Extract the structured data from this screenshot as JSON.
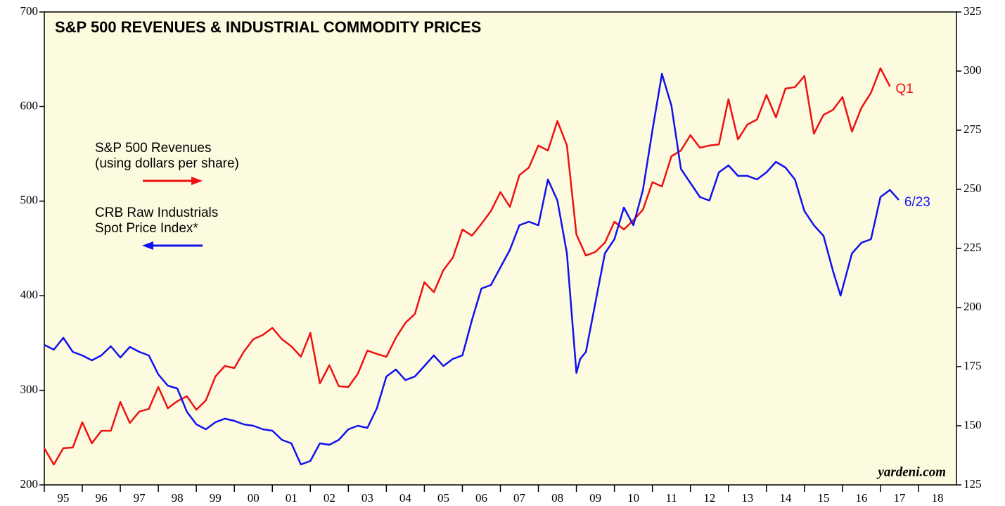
{
  "chart_data": {
    "type": "line",
    "title": "S&P 500 REVENUES & INDUSTRIAL COMMODITY PRICES",
    "source": "yardeni.com",
    "xlim": [
      1995,
      2019
    ],
    "xticks": [
      {
        "value": 1995,
        "label": "95"
      },
      {
        "value": 1996,
        "label": "96"
      },
      {
        "value": 1997,
        "label": "97"
      },
      {
        "value": 1998,
        "label": "98"
      },
      {
        "value": 1999,
        "label": "99"
      },
      {
        "value": 2000,
        "label": "00"
      },
      {
        "value": 2001,
        "label": "01"
      },
      {
        "value": 2002,
        "label": "02"
      },
      {
        "value": 2003,
        "label": "03"
      },
      {
        "value": 2004,
        "label": "04"
      },
      {
        "value": 2005,
        "label": "05"
      },
      {
        "value": 2006,
        "label": "06"
      },
      {
        "value": 2007,
        "label": "07"
      },
      {
        "value": 2008,
        "label": "08"
      },
      {
        "value": 2009,
        "label": "09"
      },
      {
        "value": 2010,
        "label": "10"
      },
      {
        "value": 2011,
        "label": "11"
      },
      {
        "value": 2012,
        "label": "12"
      },
      {
        "value": 2013,
        "label": "13"
      },
      {
        "value": 2014,
        "label": "14"
      },
      {
        "value": 2015,
        "label": "15"
      },
      {
        "value": 2016,
        "label": "16"
      },
      {
        "value": 2017,
        "label": "17"
      },
      {
        "value": 2018,
        "label": "18"
      }
    ],
    "ylim": [
      200,
      700
    ],
    "yticks": [
      200,
      300,
      400,
      500,
      600,
      700
    ],
    "y2lim": [
      125,
      325
    ],
    "y2ticks": [
      125,
      150,
      175,
      200,
      225,
      250,
      275,
      300,
      325
    ],
    "series": [
      {
        "name": "S&P 500 Revenues\n(using dollars per share)",
        "color": "#ee1111",
        "axis": "y2",
        "end_label": "Q1",
        "x": [
          1995,
          1995.25,
          1995.5,
          1995.75,
          1996,
          1996.25,
          1996.5,
          1996.75,
          1997,
          1997.25,
          1997.5,
          1997.75,
          1998,
          1998.25,
          1998.5,
          1998.75,
          1999,
          1999.25,
          1999.5,
          1999.75,
          2000,
          2000.25,
          2000.5,
          2000.75,
          2001,
          2001.25,
          2001.5,
          2001.75,
          2002,
          2002.25,
          2002.5,
          2002.75,
          2003,
          2003.25,
          2003.5,
          2003.75,
          2004,
          2004.25,
          2004.5,
          2004.75,
          2005,
          2005.25,
          2005.5,
          2005.75,
          2006,
          2006.25,
          2006.5,
          2006.75,
          2007,
          2007.25,
          2007.5,
          2007.75,
          2008,
          2008.25,
          2008.5,
          2008.75,
          2009,
          2009.25,
          2009.5,
          2009.75,
          2010,
          2010.25,
          2010.5,
          2010.75,
          2011,
          2011.25,
          2011.5,
          2011.75,
          2012,
          2012.25,
          2012.5,
          2012.75,
          2013,
          2013.25,
          2013.5,
          2013.75,
          2014,
          2014.25,
          2014.5,
          2014.75,
          2015,
          2015.25,
          2015.5,
          2015.75,
          2016,
          2016.25,
          2016.5,
          2016.75,
          2017,
          2017.25
        ],
        "values": [
          140.5,
          133.6,
          140.5,
          140.8,
          151.5,
          142.6,
          147.9,
          147.9,
          160.1,
          151.2,
          156.0,
          157.1,
          166.4,
          157.4,
          160.4,
          162.5,
          156.8,
          160.7,
          170.8,
          175.3,
          174.4,
          181.3,
          186.6,
          188.4,
          191.4,
          186.6,
          183.6,
          179.2,
          189.3,
          167.9,
          175.6,
          166.7,
          166.4,
          172.0,
          181.8,
          180.4,
          179.2,
          187.2,
          193.5,
          197.3,
          210.7,
          206.5,
          215.8,
          221.1,
          233.0,
          230.4,
          235.4,
          240.8,
          248.8,
          242.6,
          256.0,
          259.2,
          268.5,
          266.4,
          278.9,
          268.5,
          230.9,
          222.0,
          223.5,
          227.4,
          236.3,
          233.0,
          236.9,
          241.4,
          253.0,
          251.2,
          264.0,
          266.4,
          272.9,
          267.6,
          268.5,
          269.0,
          288.1,
          271.1,
          277.4,
          279.5,
          289.9,
          280.4,
          292.6,
          293.2,
          297.9,
          273.5,
          281.5,
          283.6,
          289.0,
          274.4,
          284.5,
          290.8,
          301.2,
          293.5
        ]
      },
      {
        "name": "CRB Raw Industrials\nSpot Price Index*",
        "color": "#1111ee",
        "axis": "y",
        "end_label": "6/23",
        "x": [
          1995,
          1995.25,
          1995.5,
          1995.75,
          1996,
          1996.25,
          1996.5,
          1996.75,
          1997,
          1997.25,
          1997.5,
          1997.75,
          1998,
          1998.25,
          1998.5,
          1998.75,
          1999,
          1999.25,
          1999.5,
          1999.75,
          2000,
          2000.25,
          2000.5,
          2000.75,
          2001,
          2001.25,
          2001.5,
          2001.75,
          2002,
          2002.25,
          2002.5,
          2002.75,
          2003,
          2003.25,
          2003.5,
          2003.75,
          2004,
          2004.25,
          2004.5,
          2004.75,
          2005,
          2005.25,
          2005.5,
          2005.75,
          2006,
          2006.25,
          2006.5,
          2006.75,
          2007,
          2007.25,
          2007.5,
          2007.75,
          2008,
          2008.25,
          2008.5,
          2008.75,
          2009,
          2009.1,
          2009.25,
          2009.5,
          2009.75,
          2010,
          2010.25,
          2010.5,
          2010.75,
          2011,
          2011.25,
          2011.5,
          2011.75,
          2012,
          2012.25,
          2012.5,
          2012.75,
          2013,
          2013.25,
          2013.5,
          2013.75,
          2014,
          2014.25,
          2014.5,
          2014.75,
          2015,
          2015.25,
          2015.5,
          2015.75,
          2015.95,
          2016.25,
          2016.5,
          2016.75,
          2017,
          2017.25,
          2017.48
        ],
        "values": [
          348.1,
          342.9,
          355.5,
          340.6,
          336.9,
          331.7,
          336.9,
          346.6,
          334.7,
          345.8,
          340.6,
          336.9,
          316.8,
          304.9,
          301.9,
          277.4,
          264.0,
          258.8,
          266.2,
          270.0,
          267.7,
          264.0,
          262.5,
          258.8,
          257.3,
          247.6,
          243.9,
          221.6,
          225.3,
          243.9,
          242.4,
          247.6,
          258.8,
          262.5,
          260.3,
          281.1,
          314.6,
          322.0,
          310.8,
          314.6,
          325.7,
          336.9,
          325.7,
          333.2,
          336.9,
          374.1,
          407.6,
          411.3,
          429.9,
          448.5,
          474.5,
          478.3,
          474.5,
          522.9,
          500.6,
          444.8,
          318.3,
          333.2,
          340.6,
          392.7,
          444.8,
          459.7,
          493.2,
          474.5,
          511.8,
          575.0,
          634.5,
          601.0,
          534.1,
          519.2,
          504.3,
          500.6,
          530.4,
          537.8,
          526.7,
          526.7,
          522.9,
          530.4,
          541.5,
          535.6,
          522.9,
          489.4,
          474.5,
          463.4,
          426.2,
          400.1,
          444.8,
          456.0,
          459.7,
          504.3,
          511.8,
          501.3
        ]
      }
    ]
  }
}
